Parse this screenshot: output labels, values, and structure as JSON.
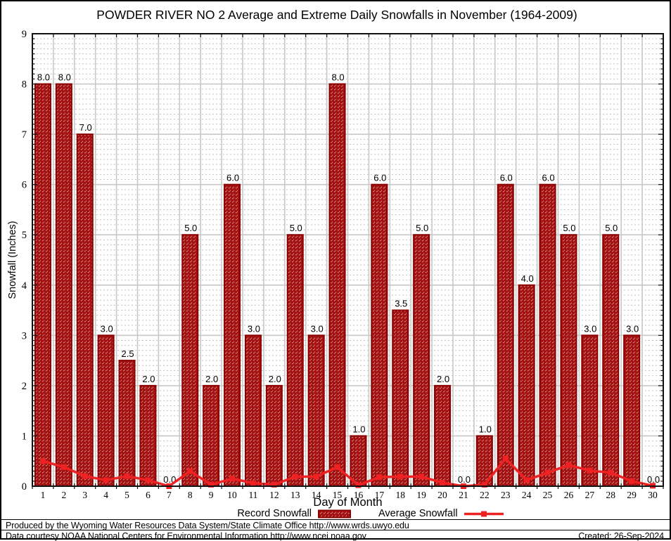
{
  "chart_data": {
    "type": "bar",
    "title": "POWDER RIVER NO 2 Average and Extreme Daily Snowfalls in November (1964-2009)",
    "xlabel": "Day of Month",
    "ylabel": "Snowfall (Inches)",
    "ylim": [
      0,
      9
    ],
    "grid": true,
    "legend_position": "bottom",
    "x": [
      1,
      2,
      3,
      4,
      5,
      6,
      7,
      8,
      9,
      10,
      11,
      12,
      13,
      14,
      15,
      16,
      17,
      18,
      19,
      20,
      21,
      22,
      23,
      24,
      25,
      26,
      27,
      28,
      29,
      30
    ],
    "series": [
      {
        "name": "Record Snowfall",
        "type": "bar",
        "values": [
          8.0,
          8.0,
          7.0,
          3.0,
          2.5,
          2.0,
          0.0,
          5.0,
          2.0,
          6.0,
          3.0,
          2.0,
          5.0,
          3.0,
          8.0,
          1.0,
          6.0,
          3.5,
          5.0,
          2.0,
          0.0,
          1.0,
          6.0,
          4.0,
          6.0,
          5.0,
          3.0,
          5.0,
          3.0,
          0.0
        ]
      },
      {
        "name": "Average Snowfall",
        "type": "line",
        "values": [
          0.5,
          0.38,
          0.2,
          0.12,
          0.2,
          0.12,
          0.0,
          0.3,
          0.03,
          0.15,
          0.06,
          0.03,
          0.19,
          0.19,
          0.38,
          0.02,
          0.18,
          0.19,
          0.19,
          0.07,
          0.0,
          0.03,
          0.55,
          0.12,
          0.27,
          0.42,
          0.31,
          0.27,
          0.1,
          0.01
        ]
      }
    ],
    "bar_value_labels": [
      "8.0",
      "8.0",
      "7.0",
      "3.0",
      "2.5",
      "2.0",
      "0.0",
      "5.0",
      "2.0",
      "6.0",
      "3.0",
      "2.0",
      "5.0",
      "3.0",
      "8.0",
      "1.0",
      "6.0",
      "3.5",
      "5.0",
      "2.0",
      "0.0",
      "1.0",
      "6.0",
      "4.0",
      "6.0",
      "5.0",
      "3.0",
      "5.0",
      "3.0",
      "0.0"
    ],
    "colors": {
      "bar_fill": "#A51212",
      "bar_edge": "#8B0000",
      "avg_line": "#EE2222",
      "grid_major": "#C8C8C8",
      "grid_minor": "#C2C2C2",
      "axis": "#111111",
      "text": "#000000"
    }
  },
  "footer": {
    "line1": "Produced by the Wyoming Water Resources Data System/State Climate Office http://www.wrds.uwyo.edu",
    "line2": "Data courtesy NOAA National Centers for Environmental Information http://www.ncei.noaa.gov",
    "created": "Created: 26-Sep-2024"
  }
}
